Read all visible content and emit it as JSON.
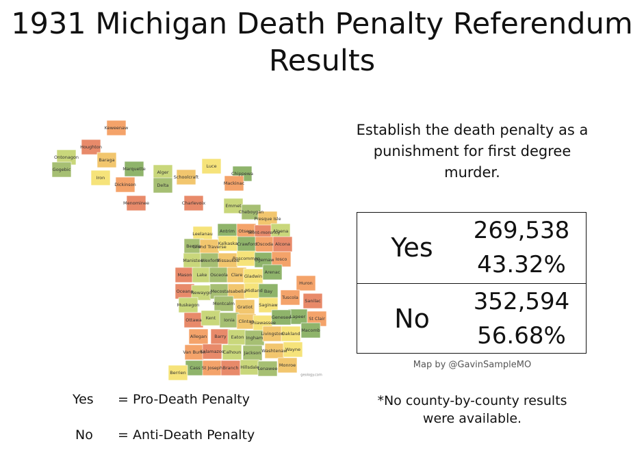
{
  "header": {
    "title": "1931 Michigan Death Penalty Referendum Results"
  },
  "question": "Establish the death penalty as a punishment for first degree murder.",
  "results": {
    "rows": [
      [
        "Yes",
        "269,538",
        "43.32%"
      ],
      [
        "No",
        "352,594",
        "56.68%"
      ]
    ]
  },
  "credit": "Map by @GavinSampleMO",
  "note": "*No county-by-county results were available.",
  "legend": [
    [
      "Yes",
      "= Pro-Death Penalty"
    ],
    [
      "No",
      "= Anti-Death Penalty"
    ]
  ],
  "map": {
    "source": "geology.com",
    "counties": [
      "Keweenaw",
      "Houghton",
      "Ontonagon",
      "Gogebic",
      "Baraga",
      "Iron",
      "Marquette",
      "Dickinson",
      "Menominee",
      "Alger",
      "Delta",
      "Schoolcraft",
      "Luce",
      "Chippewa",
      "Mackinac",
      "Charlevoix",
      "Emmet",
      "Cheboygan",
      "Presque Isle",
      "Leelanau",
      "Antrim",
      "Otsego",
      "Mont-morency",
      "Alpena",
      "Benzie",
      "Grand Traverse",
      "Kalkaska",
      "Crawford",
      "Oscoda",
      "Alcona",
      "Manistee",
      "Wexford",
      "Missaukee",
      "Roscommon",
      "Ogemaw",
      "Iosco",
      "Mason",
      "Lake",
      "Osceola",
      "Clare",
      "Gladwin",
      "Arenac",
      "Huron",
      "Oceana",
      "Newaygo",
      "Mecosta",
      "Isabella",
      "Midland",
      "Bay",
      "Tuscola",
      "Sanilac",
      "Muskegon",
      "Montcalm",
      "Gratiot",
      "Saginaw",
      "Lapeer",
      "St Clair",
      "Ottawa",
      "Kent",
      "Ionia",
      "Clinton",
      "Shiawassee",
      "Genesee",
      "Allegan",
      "Barry",
      "Eaton",
      "Ingham",
      "Livingston",
      "Oakland",
      "Macomb",
      "Van Buren",
      "Kalamazoo",
      "Calhoun",
      "Jackson",
      "Washtenaw",
      "Wayne",
      "Cass",
      "St Joseph",
      "Branch",
      "Hillsdale",
      "Lenawee",
      "Monroe",
      "Berrien"
    ]
  }
}
